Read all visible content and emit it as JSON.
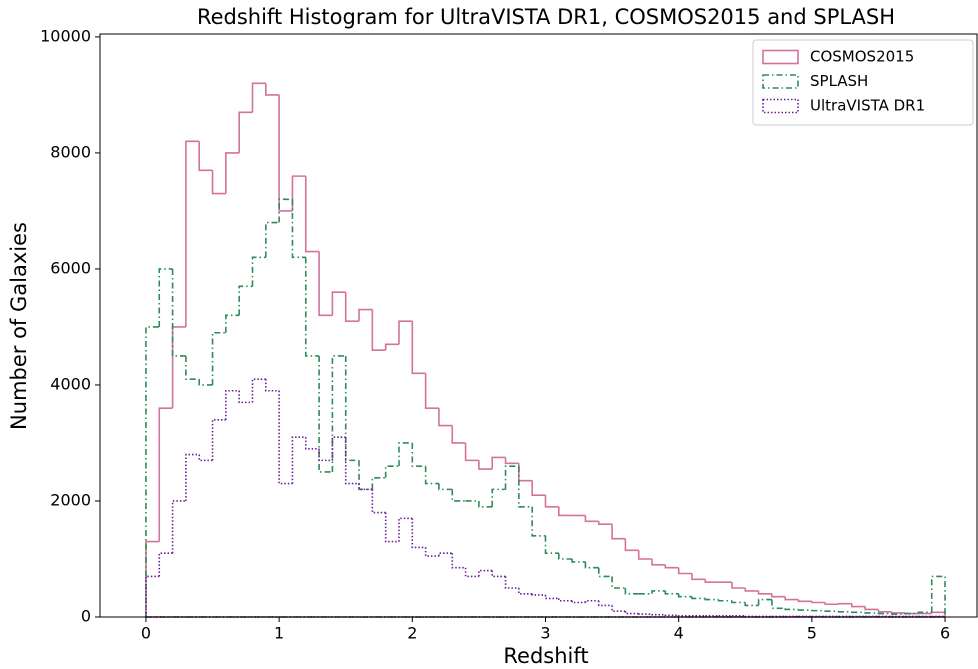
{
  "chart_data": {
    "type": "histogram",
    "title": "Redshift Histogram for UltraVISTA DR1, COSMOS2015 and SPLASH",
    "x_label": "Redshift",
    "y_label": "Number of Galaxies",
    "bins": [
      0,
      0.1,
      0.2,
      0.3,
      0.4,
      0.5,
      0.6,
      0.7,
      0.8,
      0.9,
      1,
      1.1,
      1.2,
      1.3,
      1.4,
      1.5,
      1.6,
      1.7,
      1.8,
      1.9,
      2,
      2.1,
      2.2,
      2.3,
      2.4,
      2.5,
      2.6,
      2.7,
      2.8,
      2.9,
      3,
      3.1,
      3.2,
      3.3,
      3.4,
      3.5,
      3.6,
      3.7,
      3.8,
      3.9,
      4,
      4.1,
      4.2,
      4.3,
      4.4,
      4.5,
      4.6,
      4.7,
      4.8,
      4.9,
      5,
      5.1,
      5.2,
      5.3,
      5.4,
      5.5,
      5.6,
      5.7,
      5.8,
      5.9,
      6
    ],
    "series": [
      {
        "name": "COSMOS2015",
        "color": "#d4729b",
        "dash": "solid",
        "values": [
          1300,
          3600,
          5000,
          8200,
          7700,
          7300,
          8000,
          8700,
          9200,
          9000,
          7000,
          7600,
          6300,
          5200,
          5600,
          5100,
          5300,
          4600,
          4700,
          5100,
          4200,
          3600,
          3300,
          3000,
          2700,
          2550,
          2750,
          2650,
          2350,
          2100,
          1900,
          1750,
          1750,
          1650,
          1600,
          1350,
          1150,
          1000,
          900,
          850,
          750,
          650,
          600,
          600,
          500,
          450,
          400,
          350,
          300,
          270,
          250,
          220,
          230,
          180,
          130,
          90,
          70,
          60,
          60,
          80
        ]
      },
      {
        "name": "SPLASH",
        "color": "#2e8b57",
        "dash": "dashdot",
        "values": [
          5000,
          6000,
          4500,
          4100,
          4000,
          4900,
          5200,
          5700,
          6200,
          6800,
          7200,
          6200,
          4500,
          2500,
          4500,
          2700,
          2200,
          2400,
          2600,
          3000,
          2600,
          2300,
          2200,
          2000,
          2000,
          1900,
          2200,
          2600,
          1900,
          1400,
          1100,
          1000,
          950,
          850,
          700,
          500,
          400,
          400,
          450,
          400,
          350,
          320,
          300,
          280,
          250,
          200,
          300,
          150,
          130,
          120,
          110,
          100,
          90,
          80,
          70,
          60,
          50,
          60,
          80,
          700
        ]
      },
      {
        "name": "UltraVISTA DR1",
        "color": "#6a1b9a",
        "dash": "dotted",
        "values": [
          700,
          1100,
          2000,
          2800,
          2700,
          3400,
          3900,
          3700,
          4100,
          3900,
          2300,
          3100,
          2900,
          2700,
          3100,
          2300,
          2200,
          1800,
          1300,
          1700,
          1200,
          1050,
          1100,
          850,
          700,
          800,
          700,
          500,
          400,
          380,
          320,
          280,
          250,
          280,
          200,
          100,
          60,
          50,
          40,
          30,
          20,
          20,
          20,
          20,
          20,
          10,
          10,
          10,
          10,
          10,
          10,
          10,
          10,
          10,
          10,
          10,
          10,
          10,
          10,
          10
        ]
      }
    ],
    "xlim": [
      -0.345,
      6.24
    ],
    "ylim": [
      0,
      10050
    ],
    "xticks": [
      0,
      1,
      2,
      3,
      4,
      5,
      6
    ],
    "yticks": [
      0,
      2000,
      4000,
      6000,
      8000,
      10000
    ],
    "legend": "upper right"
  }
}
